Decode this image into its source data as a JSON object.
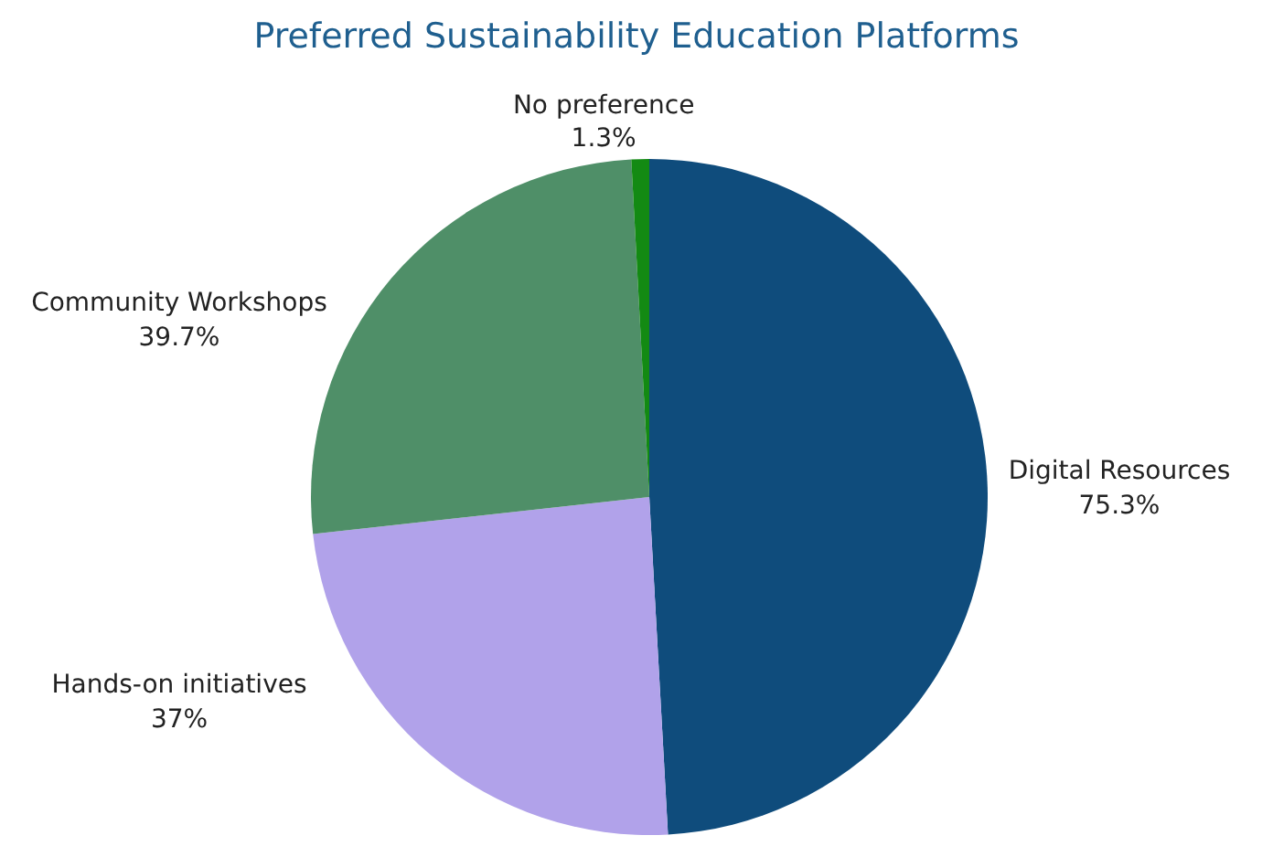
{
  "chart_data": {
    "type": "pie",
    "title": "Preferred Sustainability Education Platforms",
    "categories": [
      "Digital Resources",
      "Hands-on initiatives",
      "Community Workshops",
      "No preference"
    ],
    "values": [
      75.3,
      37,
      39.7,
      1.3
    ],
    "value_labels": [
      "75.3%",
      "37%",
      "39.7%",
      "1.3%"
    ],
    "colors": [
      "#0f4c7c",
      "#b1a2ea",
      "#4f8f68",
      "#138a13"
    ]
  }
}
